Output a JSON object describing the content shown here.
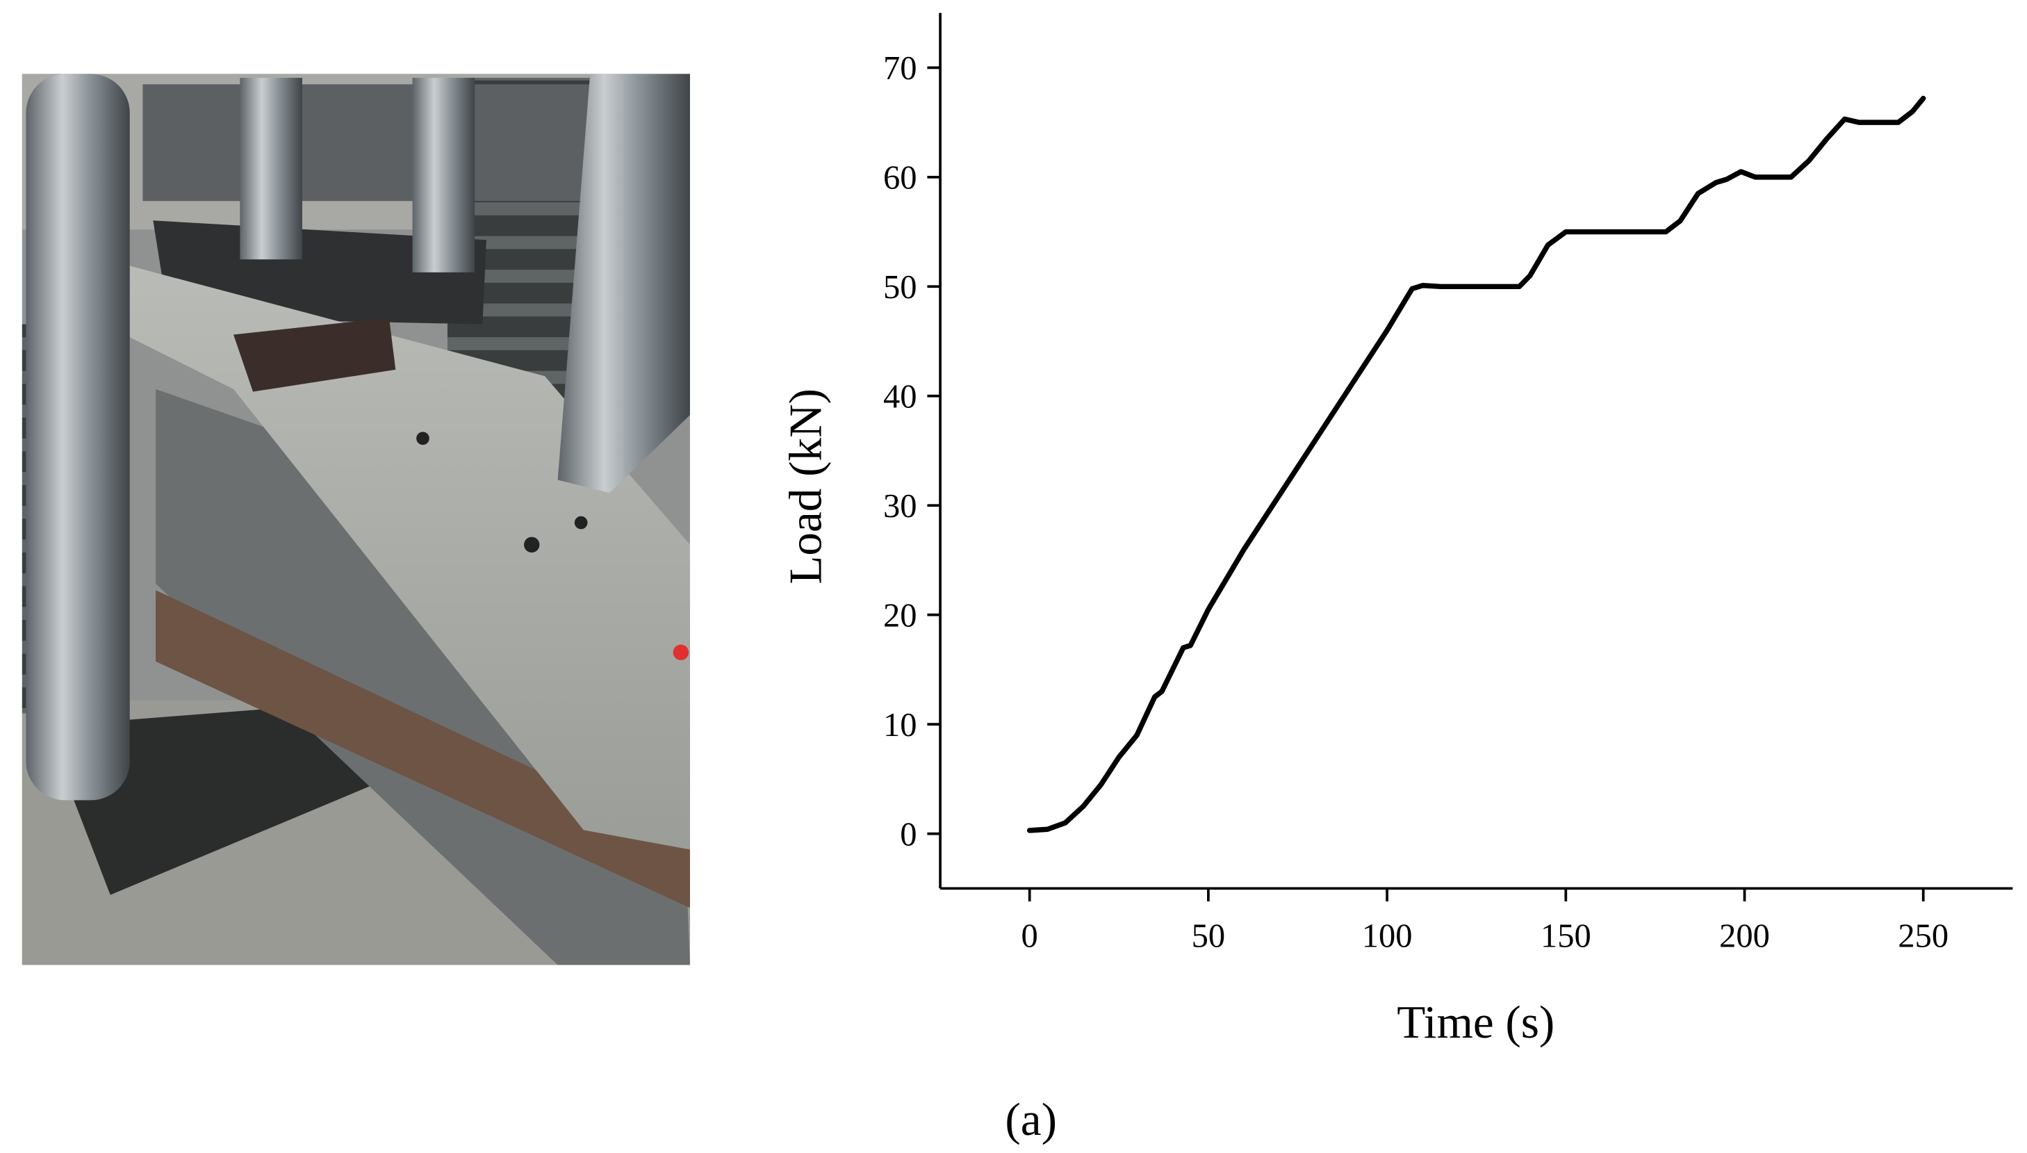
{
  "chart_data": {
    "type": "line",
    "xlabel": "Time (s)",
    "ylabel": "Load (kN)",
    "caption": "(a)",
    "x": [
      0,
      5,
      10,
      15,
      20,
      25,
      30,
      35,
      37,
      40,
      43,
      45,
      50,
      60,
      70,
      80,
      90,
      100,
      107,
      110,
      115,
      125,
      137,
      140,
      145,
      150,
      155,
      165,
      178,
      182,
      187,
      192,
      195,
      199,
      203,
      213,
      218,
      223,
      228,
      232,
      236,
      243,
      247,
      250
    ],
    "values": [
      0.3,
      0.4,
      1,
      2.5,
      4.5,
      7,
      9,
      12.5,
      13,
      15,
      17,
      17.2,
      20.5,
      26,
      31,
      36,
      41,
      46,
      49.8,
      50.1,
      50,
      50,
      50,
      51,
      53.8,
      55,
      55,
      55,
      55,
      56,
      58.5,
      59.5,
      59.8,
      60.5,
      60,
      60,
      61.5,
      63.5,
      65.3,
      65,
      65,
      65,
      66,
      67.2
    ],
    "color": "#000000",
    "xlim": [
      -25,
      275
    ],
    "xticks": [
      0,
      50,
      100,
      150,
      200,
      250
    ],
    "ylim": [
      -5,
      75
    ],
    "yticks": [
      0,
      10,
      20,
      30,
      40,
      50,
      60,
      70
    ],
    "grid": false
  }
}
